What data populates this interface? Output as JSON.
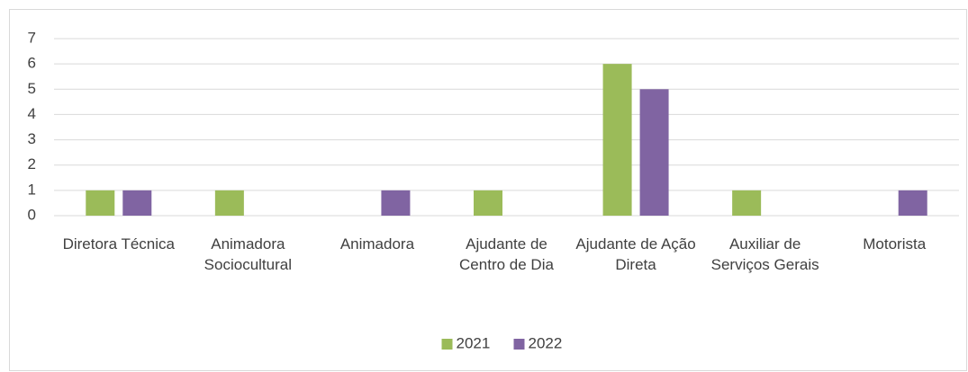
{
  "chart_data": {
    "type": "bar",
    "categories": [
      "Diretora Técnica",
      "Animadora Sociocultural",
      "Animadora",
      "Ajudante de Centro de Dia",
      "Ajudante de Ação Direta",
      "Auxiliar de Serviços Gerais",
      "Motorista"
    ],
    "series": [
      {
        "name": "2021",
        "color": "#9bbb59",
        "values": [
          1,
          1,
          0,
          1,
          6,
          1,
          0
        ]
      },
      {
        "name": "2022",
        "color": "#8064a2",
        "values": [
          1,
          0,
          1,
          0,
          5,
          0,
          1
        ]
      }
    ],
    "ylim": [
      0,
      7
    ],
    "yticks": [
      0,
      1,
      2,
      3,
      4,
      5,
      6,
      7
    ],
    "grid": true,
    "legend": "bottom"
  }
}
